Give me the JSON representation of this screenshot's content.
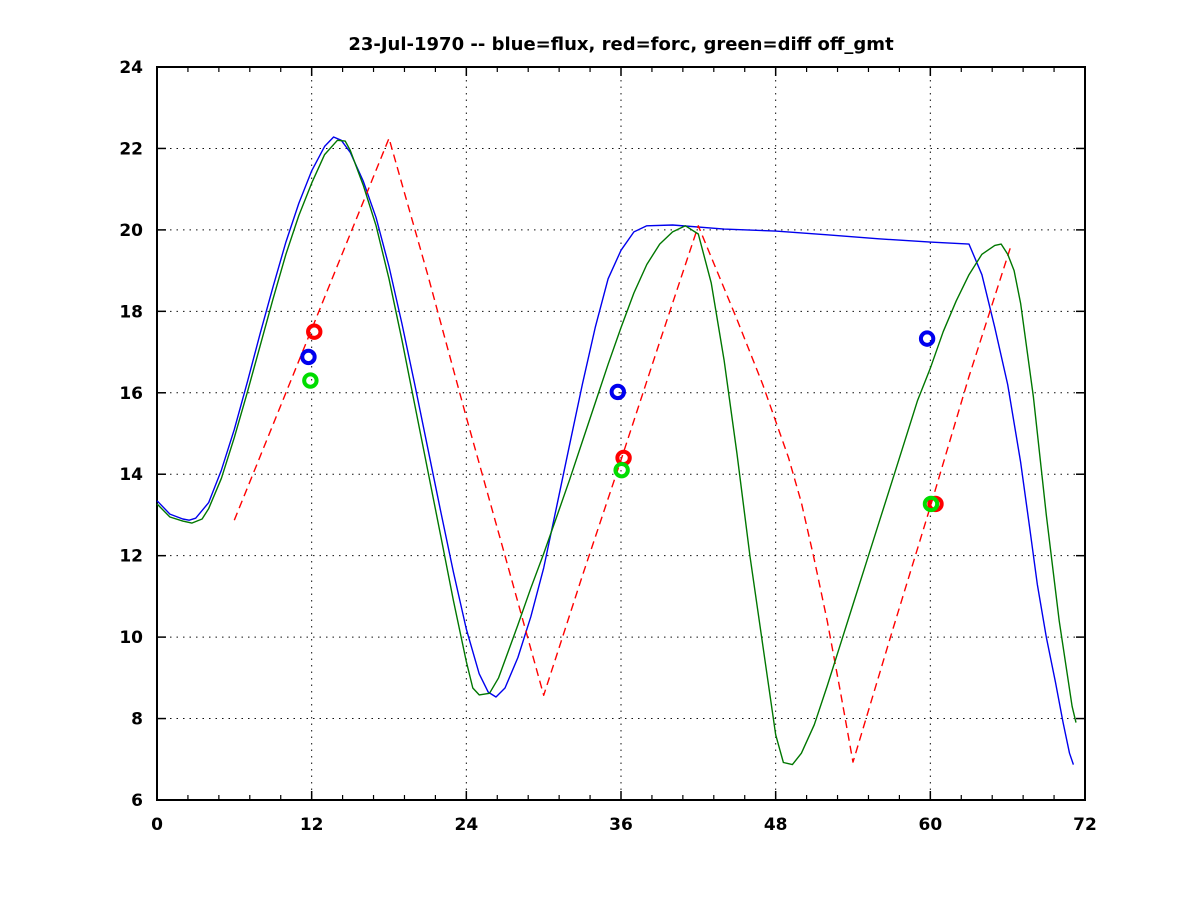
{
  "figure": {
    "background": "#ffffff"
  },
  "chart_data": {
    "type": "line",
    "title": "23-Jul-1970 -- blue=flux, red=forc, green=diff off_gmt",
    "xlabel": "",
    "ylabel": "",
    "xlim": [
      0,
      72
    ],
    "ylim": [
      6,
      24
    ],
    "x_ticks": [
      0,
      12,
      24,
      36,
      48,
      60,
      72
    ],
    "y_ticks": [
      6,
      8,
      10,
      12,
      14,
      16,
      18,
      20,
      22,
      24
    ],
    "x_minor_step": 2.4,
    "grid": "dotted",
    "grid_color": "#111111",
    "axis_color": "#000000",
    "legend_position": "in-title",
    "series": [
      {
        "name": "flux",
        "color": "#0000ee",
        "dash": null,
        "points": [
          [
            0,
            13.35
          ],
          [
            1,
            13.02
          ],
          [
            2,
            12.9
          ],
          [
            2.5,
            12.87
          ],
          [
            3,
            12.92
          ],
          [
            4,
            13.3
          ],
          [
            5,
            14.1
          ],
          [
            6,
            15.1
          ],
          [
            7,
            16.25
          ],
          [
            8,
            17.45
          ],
          [
            9,
            18.6
          ],
          [
            10,
            19.7
          ],
          [
            11,
            20.65
          ],
          [
            12,
            21.45
          ],
          [
            13,
            22.05
          ],
          [
            13.7,
            22.28
          ],
          [
            14.3,
            22.2
          ],
          [
            15,
            21.9
          ],
          [
            16,
            21.2
          ],
          [
            17,
            20.3
          ],
          [
            18,
            19.1
          ],
          [
            19,
            17.7
          ],
          [
            20,
            16.2
          ],
          [
            21,
            14.65
          ],
          [
            22,
            13.1
          ],
          [
            23,
            11.6
          ],
          [
            24,
            10.2
          ],
          [
            25,
            9.1
          ],
          [
            25.7,
            8.65
          ],
          [
            26.3,
            8.53
          ],
          [
            27,
            8.75
          ],
          [
            28,
            9.5
          ],
          [
            29,
            10.5
          ],
          [
            30,
            11.7
          ],
          [
            31,
            13.2
          ],
          [
            32,
            14.7
          ],
          [
            33,
            16.2
          ],
          [
            34,
            17.6
          ],
          [
            35,
            18.8
          ],
          [
            36,
            19.5
          ],
          [
            37,
            19.95
          ],
          [
            38,
            20.1
          ],
          [
            40,
            20.12
          ],
          [
            44,
            20.02
          ],
          [
            48,
            19.97
          ],
          [
            52,
            19.88
          ],
          [
            56,
            19.78
          ],
          [
            60,
            19.7
          ],
          [
            63,
            19.65
          ],
          [
            64,
            18.9
          ],
          [
            65,
            17.6
          ],
          [
            66,
            16.2
          ],
          [
            67,
            14.3
          ],
          [
            67.7,
            12.7
          ],
          [
            68.3,
            11.3
          ],
          [
            69,
            10.0
          ],
          [
            69.7,
            8.9
          ],
          [
            70.3,
            7.9
          ],
          [
            70.8,
            7.15
          ],
          [
            71.1,
            6.87
          ]
        ]
      },
      {
        "name": "forc",
        "color": "#ff0000",
        "dash": "8,5",
        "points": [
          [
            6,
            12.87
          ],
          [
            18,
            22.25
          ],
          [
            21,
            18.9
          ],
          [
            24,
            15.4
          ],
          [
            27,
            12.0
          ],
          [
            30,
            8.57
          ],
          [
            33,
            11.5
          ],
          [
            36,
            14.35
          ],
          [
            39,
            17.25
          ],
          [
            42,
            20.1
          ],
          [
            45,
            17.8
          ],
          [
            47,
            16.2
          ],
          [
            49,
            14.4
          ],
          [
            50,
            13.3
          ],
          [
            51,
            11.9
          ],
          [
            52,
            10.4
          ],
          [
            53,
            8.7
          ],
          [
            54,
            6.93
          ],
          [
            57,
            10.1
          ],
          [
            60,
            13.2
          ],
          [
            63,
            16.4
          ],
          [
            66.2,
            19.55
          ]
        ]
      },
      {
        "name": "diff",
        "color": "#007700",
        "dash": null,
        "points": [
          [
            0,
            13.27
          ],
          [
            1,
            12.95
          ],
          [
            2,
            12.85
          ],
          [
            2.7,
            12.8
          ],
          [
            3.5,
            12.9
          ],
          [
            4,
            13.15
          ],
          [
            5,
            13.9
          ],
          [
            6,
            14.9
          ],
          [
            7,
            16.0
          ],
          [
            8,
            17.15
          ],
          [
            9,
            18.3
          ],
          [
            10,
            19.4
          ],
          [
            11,
            20.35
          ],
          [
            12,
            21.15
          ],
          [
            13,
            21.85
          ],
          [
            14,
            22.2
          ],
          [
            14.6,
            22.18
          ],
          [
            15,
            21.95
          ],
          [
            16,
            21.1
          ],
          [
            17,
            20.1
          ],
          [
            18,
            18.8
          ],
          [
            19,
            17.3
          ],
          [
            20,
            15.7
          ],
          [
            21,
            14.1
          ],
          [
            22,
            12.5
          ],
          [
            23,
            10.9
          ],
          [
            24,
            9.4
          ],
          [
            24.5,
            8.75
          ],
          [
            25,
            8.58
          ],
          [
            25.8,
            8.62
          ],
          [
            26.5,
            9.0
          ],
          [
            28,
            10.3
          ],
          [
            29,
            11.2
          ],
          [
            30,
            12.05
          ],
          [
            31,
            12.95
          ],
          [
            32,
            13.85
          ],
          [
            33,
            14.8
          ],
          [
            34,
            15.75
          ],
          [
            35,
            16.7
          ],
          [
            36,
            17.6
          ],
          [
            37,
            18.45
          ],
          [
            38,
            19.15
          ],
          [
            39,
            19.65
          ],
          [
            40,
            19.95
          ],
          [
            41,
            20.1
          ],
          [
            42,
            19.9
          ],
          [
            43,
            18.7
          ],
          [
            44,
            16.8
          ],
          [
            45,
            14.5
          ],
          [
            46,
            12.0
          ],
          [
            47,
            9.8
          ],
          [
            48,
            7.6
          ],
          [
            48.6,
            6.92
          ],
          [
            49.3,
            6.87
          ],
          [
            50,
            7.15
          ],
          [
            51,
            7.85
          ],
          [
            52,
            8.8
          ],
          [
            53,
            9.8
          ],
          [
            54,
            10.8
          ],
          [
            55,
            11.8
          ],
          [
            56,
            12.8
          ],
          [
            57,
            13.8
          ],
          [
            58,
            14.8
          ],
          [
            59,
            15.8
          ],
          [
            60,
            16.6
          ],
          [
            61,
            17.5
          ],
          [
            62,
            18.25
          ],
          [
            63,
            18.9
          ],
          [
            64,
            19.4
          ],
          [
            65,
            19.62
          ],
          [
            65.5,
            19.65
          ],
          [
            66,
            19.4
          ],
          [
            66.5,
            19.0
          ],
          [
            67,
            18.2
          ],
          [
            68,
            15.9
          ],
          [
            69,
            13.0
          ],
          [
            70,
            10.4
          ],
          [
            71,
            8.3
          ],
          [
            71.3,
            7.9
          ]
        ]
      }
    ],
    "marker_sets": [
      {
        "name": "forc-markers",
        "color": "#ff0000",
        "shape": "circle",
        "points": [
          [
            12.2,
            17.5
          ],
          [
            36.2,
            14.4
          ],
          [
            60.4,
            13.27
          ]
        ]
      },
      {
        "name": "flux-markers",
        "color": "#0000ee",
        "shape": "circle",
        "points": [
          [
            11.75,
            16.88
          ],
          [
            35.75,
            16.02
          ],
          [
            59.75,
            17.33
          ]
        ]
      },
      {
        "name": "diff-markers",
        "color": "#00dd00",
        "shape": "circle",
        "points": [
          [
            11.9,
            16.3
          ],
          [
            36.05,
            14.1
          ],
          [
            60.05,
            13.27
          ]
        ]
      }
    ]
  }
}
